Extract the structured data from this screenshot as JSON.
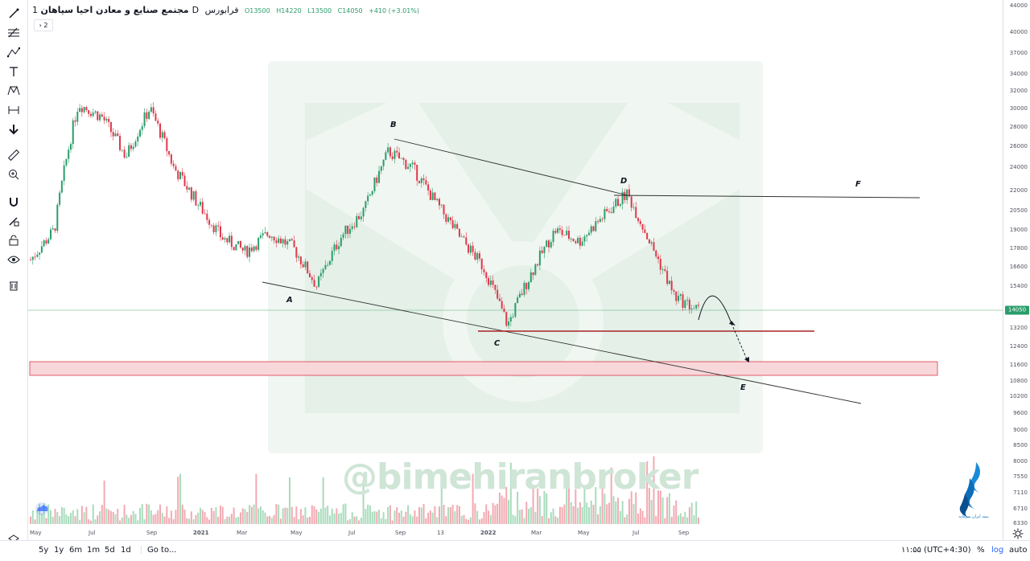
{
  "header": {
    "symbol": "مجتمع صنایع و معادن احیا  سپاهان",
    "interval": "1D",
    "exchange": "فرابورس",
    "o_label": "O",
    "o": "13500",
    "h_label": "H",
    "h": "14220",
    "l_label": "L",
    "l": "13500",
    "c_label": "C",
    "c": "14050",
    "change": "+410 (+3.01%)"
  },
  "indicator_toggle": "2",
  "toolbar": {
    "icons": [
      "crosshair-icon",
      "trend-line-icon",
      "fib-icon",
      "pattern-icon",
      "text-icon",
      "xabcd-icon",
      "measure-icon",
      "arrow-icon",
      "ruler-icon",
      "zoom-in-icon",
      "magnet-icon",
      "lock-drawings-icon",
      "unlock-icon",
      "eye-icon",
      "trash-icon",
      "layers-icon"
    ]
  },
  "price_axis": {
    "ticks": [
      "44000",
      "40000",
      "37000",
      "34000",
      "32000",
      "30000",
      "28000",
      "26000",
      "24000",
      "22000",
      "20500",
      "19000",
      "17800",
      "16600",
      "15400",
      "14050",
      "13200",
      "12400",
      "11600",
      "10800",
      "10200",
      "9600",
      "9000",
      "8500",
      "8000",
      "7550",
      "7110",
      "6710",
      "6330"
    ],
    "last_price_label": "14050"
  },
  "time_axis": {
    "labels": [
      "May",
      "Jul",
      "Sep",
      "2021",
      "Mar",
      "May",
      "Jul",
      "Sep",
      "13",
      "2022",
      "Mar",
      "May",
      "Jul",
      "Sep"
    ]
  },
  "bottom_bar": {
    "ranges": [
      "5y",
      "1y",
      "6m",
      "1m",
      "5d",
      "1d"
    ],
    "goto": "Go to...",
    "clock": "۱۱:۵۵ (UTC+4:30)",
    "percent": "%",
    "log": "log",
    "auto": "auto"
  },
  "watermark": "@bimehiranbroker",
  "brand_caption": "بیمه ایران سرمایه",
  "wave_labels": [
    "A",
    "B",
    "C",
    "D",
    "E",
    "F"
  ],
  "colors": {
    "up": "#2a9d6b",
    "down": "#e0374a",
    "zone": "#f7d7da",
    "zone_border": "#e0374a",
    "support": "#a82222"
  },
  "chart_data": {
    "type": "candlestick",
    "symbol": "مجتمع صنایع و معادن احیا  سپاهان",
    "interval": "1D",
    "ohlc_last": {
      "open": 13500,
      "high": 14220,
      "low": 13500,
      "close": 14050,
      "change": 410,
      "change_pct": 3.01
    },
    "price_scale": "log",
    "approx_close_path": [
      [
        "May 2020",
        17000
      ],
      [
        "Jun 2020",
        19000
      ],
      [
        "Jul 2020",
        30500
      ],
      [
        "Aug 2020",
        29000
      ],
      [
        "Sep 2020",
        25000
      ],
      [
        "Oct 2020",
        30000
      ],
      [
        "Nov 2020",
        24000
      ],
      [
        "Dec 2020",
        21000
      ],
      [
        "Jan 2021",
        18500
      ],
      [
        "Feb 2021",
        17500
      ],
      [
        "Mar 2021",
        18800
      ],
      [
        "Apr 2021",
        17800
      ],
      [
        "May 2021",
        15400
      ],
      [
        "Jun 2021",
        18500
      ],
      [
        "Jul 2021",
        20500
      ],
      [
        "Aug 2021",
        25500
      ],
      [
        "Sep 2021",
        24000
      ],
      [
        "Oct 2021",
        21000
      ],
      [
        "Nov 2021",
        18500
      ],
      [
        "Dec 2021",
        16500
      ],
      [
        "Jan 2022",
        13300
      ],
      [
        "Feb 2022",
        16200
      ],
      [
        "Mar 2022",
        19000
      ],
      [
        "Apr 2022",
        18200
      ],
      [
        "May 2022",
        20000
      ],
      [
        "Jun 2022",
        21800
      ],
      [
        "Jul 2022",
        18000
      ],
      [
        "Aug 2022",
        14800
      ],
      [
        "Sep 2022",
        14050
      ]
    ],
    "annotations": {
      "wave_points": {
        "A": 15400,
        "B": 26000,
        "C": 13200,
        "D": 21800,
        "E": 10800,
        "F": 21800
      },
      "support_level": 13200,
      "demand_zone": [
        11000,
        11600
      ]
    }
  }
}
